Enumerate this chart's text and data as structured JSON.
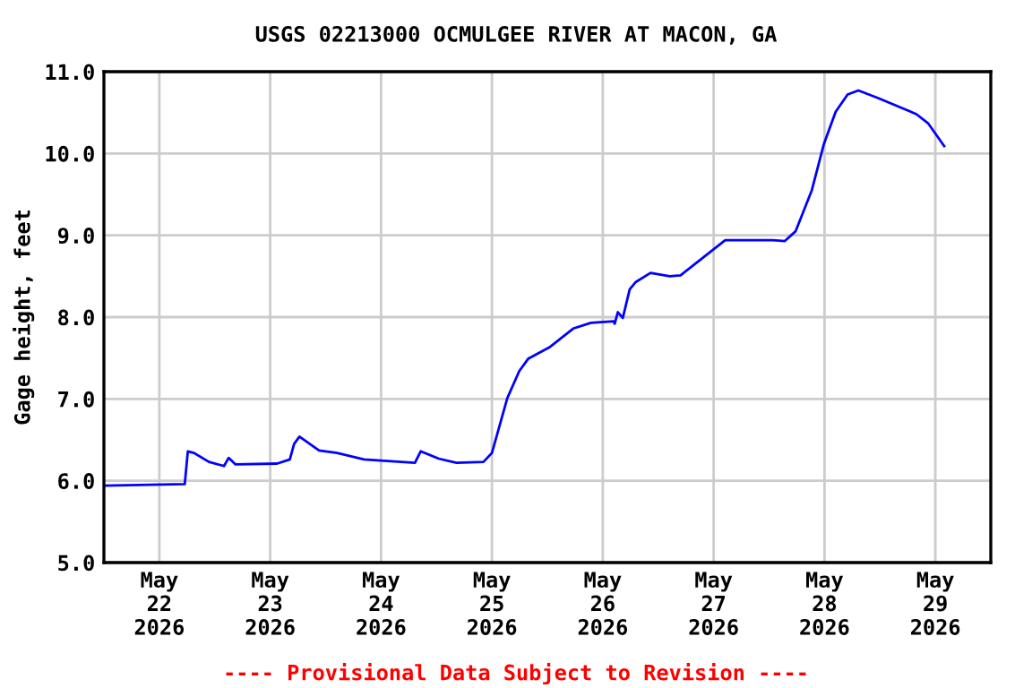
{
  "chart_data": {
    "type": "line",
    "title": "USGS 02213000 OCMULGEE RIVER AT MACON, GA",
    "ylabel": "Gage height, feet",
    "annotations": [
      "---- Provisional Data Subject to Revision ----"
    ],
    "x": [
      "2026-05-21T12:00",
      "2026-05-22T05:30",
      "2026-05-22T06:10",
      "2026-05-22T07:30",
      "2026-05-22T10:45",
      "2026-05-22T14:00",
      "2026-05-22T15:00",
      "2026-05-22T16:30",
      "2026-05-23T01:30",
      "2026-05-23T04:15",
      "2026-05-23T05:10",
      "2026-05-23T06:20",
      "2026-05-23T10:35",
      "2026-05-23T14:30",
      "2026-05-23T20:20",
      "2026-05-24T07:20",
      "2026-05-24T08:35",
      "2026-05-24T12:30",
      "2026-05-24T16:20",
      "2026-05-24T22:10",
      "2026-05-25T00:00",
      "2026-05-25T03:20",
      "2026-05-25T05:55",
      "2026-05-25T07:50",
      "2026-05-25T12:25",
      "2026-05-25T17:35",
      "2026-05-25T21:25",
      "2026-05-26T02:20",
      "2026-05-26T02:35",
      "2026-05-26T03:15",
      "2026-05-26T04:20",
      "2026-05-26T05:50",
      "2026-05-26T07:10",
      "2026-05-26T10:20",
      "2026-05-26T14:30",
      "2026-05-26T16:50",
      "2026-05-26T22:00",
      "2026-05-27T02:30",
      "2026-05-27T12:50",
      "2026-05-27T15:25",
      "2026-05-27T17:45",
      "2026-05-27T21:15",
      "2026-05-27T23:50",
      "2026-05-28T02:25",
      "2026-05-28T05:00",
      "2026-05-28T07:20",
      "2026-05-28T11:30",
      "2026-05-28T15:20",
      "2026-05-28T19:55",
      "2026-05-28T22:25",
      "2026-05-29T01:55"
    ],
    "series": [
      {
        "color": "#0000ff",
        "values": [
          5.94,
          5.96,
          6.36,
          6.34,
          6.23,
          6.18,
          6.28,
          6.2,
          6.21,
          6.26,
          6.45,
          6.54,
          6.37,
          6.34,
          6.26,
          6.22,
          6.36,
          6.27,
          6.22,
          6.23,
          6.34,
          7.01,
          7.34,
          7.49,
          7.63,
          7.86,
          7.93,
          7.95,
          7.92,
          8.06,
          7.99,
          8.34,
          8.43,
          8.54,
          8.5,
          8.51,
          8.74,
          8.94,
          8.94,
          8.93,
          9.05,
          9.55,
          10.11,
          10.51,
          10.72,
          10.77,
          10.68,
          10.59,
          10.48,
          10.37,
          10.09
        ]
      }
    ],
    "xlim": [
      "2026-05-21T12:00",
      "2026-05-29T12:00"
    ],
    "xticks": [
      {
        "value": "2026-05-22",
        "label": "May\n22\n2026"
      },
      {
        "value": "2026-05-23",
        "label": "May\n23\n2026"
      },
      {
        "value": "2026-05-24",
        "label": "May\n24\n2026"
      },
      {
        "value": "2026-05-25",
        "label": "May\n25\n2026"
      },
      {
        "value": "2026-05-26",
        "label": "May\n26\n2026"
      },
      {
        "value": "2026-05-27",
        "label": "May\n27\n2026"
      },
      {
        "value": "2026-05-28",
        "label": "May\n28\n2026"
      },
      {
        "value": "2026-05-29",
        "label": "May\n29\n2026"
      }
    ],
    "ylim": [
      5.0,
      11.0
    ],
    "yticks": [
      {
        "value": 5,
        "label": "5.0"
      },
      {
        "value": 6,
        "label": "6.0"
      },
      {
        "value": 7,
        "label": "7.0"
      },
      {
        "value": 8,
        "label": "8.0"
      },
      {
        "value": 9,
        "label": "9.0"
      },
      {
        "value": 10,
        "label": "10.0"
      },
      {
        "value": 11,
        "label": "11.0"
      }
    ],
    "grid": true,
    "legend": false,
    "marker": "none",
    "line_style": "solid"
  }
}
